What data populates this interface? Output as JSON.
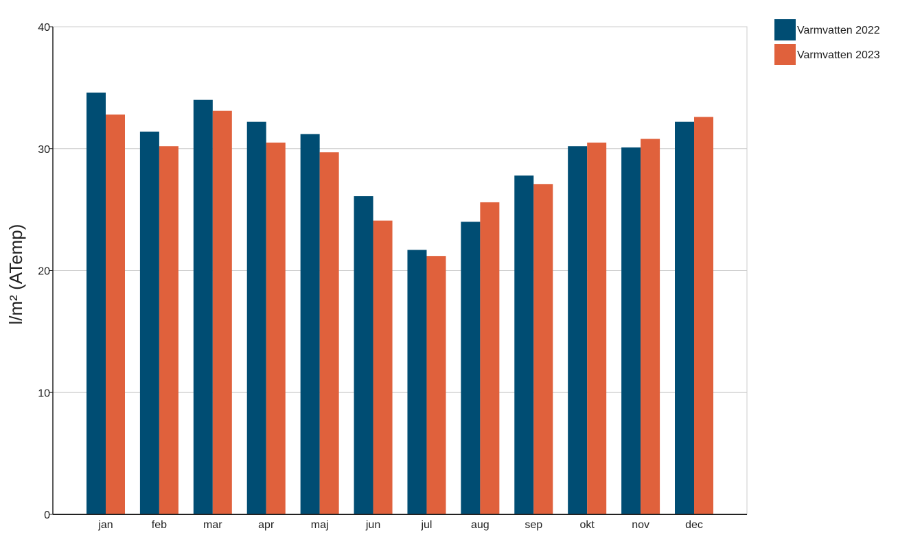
{
  "chart_data": {
    "type": "bar",
    "categories": [
      "jan",
      "feb",
      "mar",
      "apr",
      "maj",
      "jun",
      "jul",
      "aug",
      "sep",
      "okt",
      "nov",
      "dec"
    ],
    "series": [
      {
        "name": "Varmvatten 2022",
        "color": "#004d73",
        "values": [
          34.6,
          31.4,
          34.0,
          32.2,
          31.2,
          26.1,
          21.7,
          24.0,
          27.8,
          30.2,
          30.1,
          32.2
        ]
      },
      {
        "name": "Varmvatten 2023",
        "color": "#e0613c",
        "values": [
          32.8,
          30.2,
          33.1,
          30.5,
          29.7,
          24.1,
          21.2,
          25.6,
          27.1,
          30.5,
          30.8,
          32.6
        ]
      }
    ],
    "ylabel": "l/m² (ATemp)",
    "xlabel": "",
    "ylim": [
      0,
      40
    ],
    "yticks": [
      0,
      10,
      20,
      30,
      40
    ],
    "grid": true,
    "legend_position": "top-right"
  }
}
